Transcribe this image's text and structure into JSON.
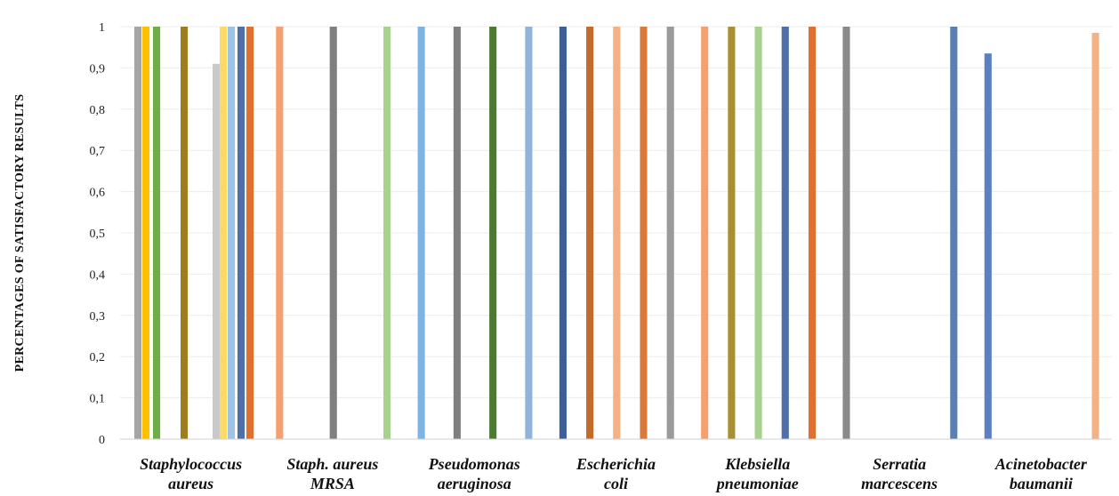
{
  "chart_data": {
    "type": "bar",
    "ylabel": "PERCENTAGES OF SATISFACTORY RESULTS",
    "xlabel": "",
    "ylim": [
      0,
      1
    ],
    "yticks": [
      "0",
      "0,1",
      "0,2",
      "0,3",
      "0,4",
      "0,5",
      "0,6",
      "0,7",
      "0,8",
      "0,9",
      "1"
    ],
    "grid": true,
    "categories": [
      [
        "Staphylococcus",
        "aureus"
      ],
      [
        "Staph. aureus",
        "MRSA"
      ],
      [
        "Pseudomonas",
        "aeruginosa"
      ],
      [
        "Escherichia",
        "coli"
      ],
      [
        "Klebsiella",
        "pneumoniae"
      ],
      [
        "Serratia",
        "marcescens"
      ],
      [
        "Acinetobacter",
        "baumanii"
      ]
    ],
    "series": [
      {
        "color": "#a5a5a5",
        "values": [
          1,
          null,
          null,
          null,
          null,
          null,
          null
        ]
      },
      {
        "color": "#ffc000",
        "values": [
          1,
          null,
          null,
          null,
          null,
          null,
          null
        ]
      },
      {
        "color": "#70ad47",
        "values": [
          1,
          null,
          null,
          null,
          null,
          null,
          null
        ]
      },
      {
        "color": "#9e7e1c",
        "values": [
          1,
          null,
          null,
          null,
          null,
          null,
          null
        ]
      },
      {
        "color": "#c9c9c9",
        "values": [
          0.91,
          null,
          null,
          null,
          null,
          null,
          null
        ]
      },
      {
        "color": "#ffd966",
        "values": [
          1,
          null,
          null,
          null,
          null,
          null,
          null
        ]
      },
      {
        "color": "#9dc3e6",
        "values": [
          1,
          null,
          null,
          null,
          null,
          null,
          null
        ]
      },
      {
        "color": "#4f6fa8",
        "values": [
          1,
          null,
          null,
          null,
          null,
          null,
          null
        ]
      },
      {
        "color": "#e07030",
        "values": [
          1,
          null,
          null,
          null,
          null,
          null,
          null
        ]
      },
      {
        "color": "#f4a070",
        "values": [
          null,
          1,
          null,
          null,
          null,
          null,
          null
        ]
      },
      {
        "color": "#7f7f7f",
        "values": [
          null,
          1,
          null,
          null,
          null,
          null,
          null
        ]
      },
      {
        "color": "#a9d18e",
        "values": [
          null,
          1,
          null,
          null,
          null,
          null,
          null
        ]
      },
      {
        "color": "#7fb2e5",
        "values": [
          null,
          null,
          1,
          null,
          null,
          null,
          null
        ]
      },
      {
        "color": "#7f7f7f",
        "values": [
          null,
          null,
          1,
          null,
          null,
          null,
          null
        ]
      },
      {
        "color": "#4d7a32",
        "values": [
          null,
          null,
          1,
          null,
          null,
          null,
          null
        ]
      },
      {
        "color": "#8fb4d9",
        "values": [
          null,
          null,
          1,
          null,
          null,
          null,
          null
        ]
      },
      {
        "color": "#3b5f98",
        "values": [
          null,
          null,
          null,
          1,
          null,
          null,
          null
        ]
      },
      {
        "color": "#c46a2b",
        "values": [
          null,
          null,
          null,
          1,
          null,
          null,
          null
        ]
      },
      {
        "color": "#f4b183",
        "values": [
          null,
          null,
          null,
          1,
          null,
          null,
          null
        ]
      },
      {
        "color": "#d9793a",
        "values": [
          null,
          null,
          null,
          1,
          null,
          null,
          null
        ]
      },
      {
        "color": "#9a9a9a",
        "values": [
          null,
          null,
          null,
          1,
          null,
          null,
          null
        ]
      },
      {
        "color": "#f4a070",
        "values": [
          null,
          null,
          null,
          null,
          1,
          null,
          null
        ]
      },
      {
        "color": "#a89030",
        "values": [
          null,
          null,
          null,
          null,
          1,
          null,
          null
        ]
      },
      {
        "color": "#a9d18e",
        "values": [
          null,
          null,
          null,
          null,
          1,
          null,
          null
        ]
      },
      {
        "color": "#4f6fa8",
        "values": [
          null,
          null,
          null,
          null,
          1,
          null,
          null
        ]
      },
      {
        "color": "#e07030",
        "values": [
          null,
          null,
          null,
          null,
          1,
          null,
          null
        ]
      },
      {
        "color": "#8a8a8a",
        "values": [
          null,
          null,
          null,
          null,
          null,
          1,
          null
        ]
      },
      {
        "color": "#5b7fb5",
        "values": [
          null,
          null,
          null,
          null,
          null,
          1,
          null
        ]
      },
      {
        "color": "#5b7fc0",
        "values": [
          null,
          null,
          null,
          null,
          null,
          null,
          0.935
        ]
      },
      {
        "color": "#f4b183",
        "values": [
          null,
          null,
          null,
          null,
          null,
          null,
          0.985
        ]
      }
    ]
  }
}
